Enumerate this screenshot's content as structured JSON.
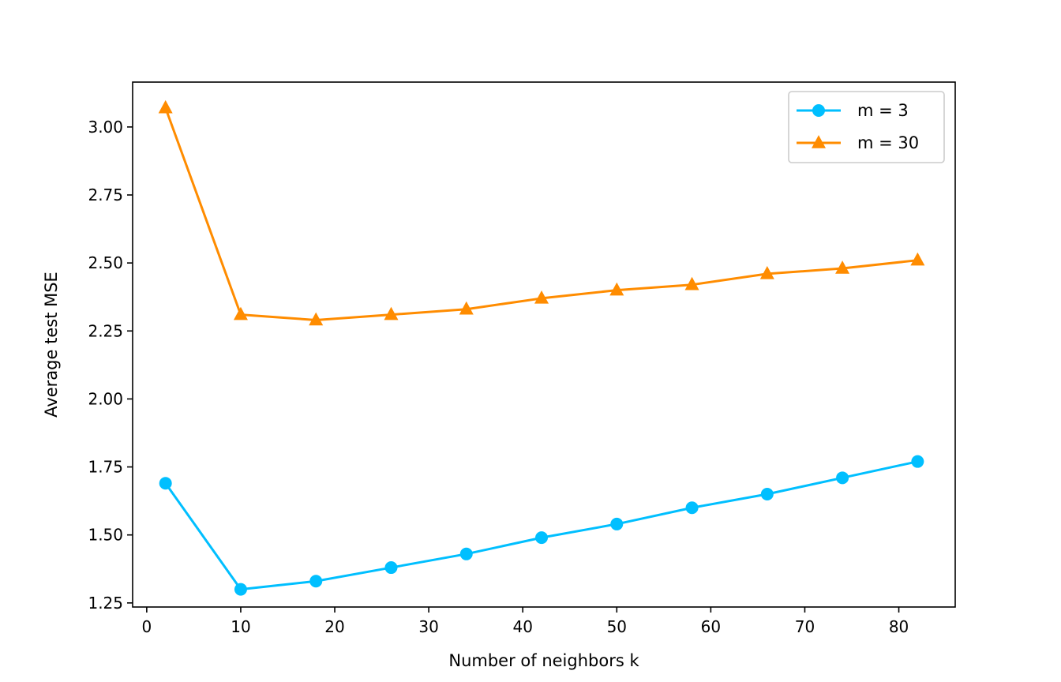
{
  "chart_data": {
    "type": "line",
    "title": "",
    "xlabel": "Number of neighbors k",
    "ylabel": "Average test MSE",
    "xlim": [
      -1.5,
      86
    ],
    "ylim": [
      1.235,
      3.165
    ],
    "xticks": [
      0,
      10,
      20,
      30,
      40,
      50,
      60,
      70,
      80
    ],
    "xtick_labels": [
      "0",
      "10",
      "20",
      "30",
      "40",
      "50",
      "60",
      "70",
      "80"
    ],
    "yticks": [
      1.25,
      1.5,
      1.75,
      2.0,
      2.25,
      2.5,
      2.75,
      3.0
    ],
    "ytick_labels": [
      "1.25",
      "1.50",
      "1.75",
      "2.00",
      "2.25",
      "2.50",
      "2.75",
      "3.00"
    ],
    "grid": false,
    "legend_position": "top-right",
    "x": [
      2,
      10,
      18,
      26,
      34,
      42,
      50,
      58,
      66,
      74,
      82
    ],
    "series": [
      {
        "name": "m = 3",
        "color": "#00bfff",
        "marker": "circle",
        "values": [
          1.69,
          1.3,
          1.33,
          1.38,
          1.43,
          1.49,
          1.54,
          1.6,
          1.65,
          1.71,
          1.77
        ]
      },
      {
        "name": "m = 30",
        "color": "#ff8c00",
        "marker": "triangle",
        "values": [
          3.07,
          2.31,
          2.29,
          2.31,
          2.33,
          2.37,
          2.4,
          2.42,
          2.46,
          2.48,
          2.51
        ]
      }
    ]
  }
}
